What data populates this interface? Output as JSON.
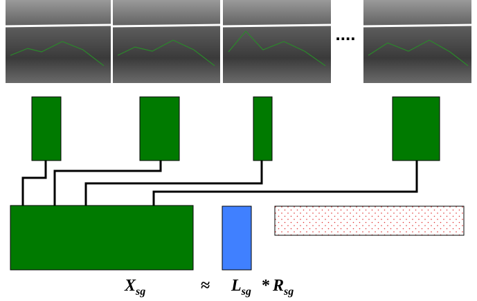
{
  "ellipsis": "....",
  "formula": {
    "x": "X",
    "x_sub": "sg",
    "approx": "≈",
    "l": "L",
    "l_sub": "sg",
    "times": "*",
    "r": "R",
    "r_sub": "sg"
  }
}
